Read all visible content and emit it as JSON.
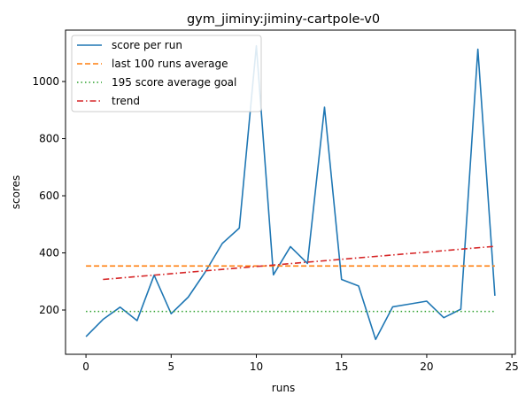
{
  "chart_data": {
    "type": "line",
    "title": "gym_jiminy:jiminy-cartpole-v0",
    "xlabel": "runs",
    "ylabel": "scores",
    "xlim": [
      -1.2,
      25.2
    ],
    "ylim": [
      45,
      1180
    ],
    "xticks": [
      0,
      5,
      10,
      15,
      20,
      25
    ],
    "yticks": [
      200,
      400,
      600,
      800,
      1000
    ],
    "grid": false,
    "legend_position": "top-left",
    "series": [
      {
        "name": "score per run",
        "style": "solid",
        "color": "#1f77b4",
        "x": [
          0,
          1,
          2,
          3,
          4,
          5,
          6,
          7,
          8,
          9,
          10,
          11,
          12,
          13,
          14,
          15,
          16,
          17,
          18,
          19,
          20,
          21,
          22,
          23,
          24
        ],
        "y": [
          107,
          167,
          210,
          163,
          322,
          187,
          245,
          333,
          433,
          487,
          1125,
          323,
          422,
          363,
          910,
          307,
          284,
          97,
          211,
          221,
          231,
          173,
          203,
          1113,
          250
        ]
      },
      {
        "name": "last 100 runs average",
        "style": "dashed",
        "color": "#ff7f0e",
        "x": [
          0,
          24
        ],
        "y": [
          354,
          354
        ]
      },
      {
        "name": "195 score average goal",
        "style": "dotted",
        "color": "#2ca02c",
        "x": [
          0,
          24
        ],
        "y": [
          195,
          195
        ]
      },
      {
        "name": "trend",
        "style": "dashdot",
        "color": "#d62728",
        "x": [
          1,
          24
        ],
        "y": [
          307,
          423
        ]
      }
    ]
  }
}
